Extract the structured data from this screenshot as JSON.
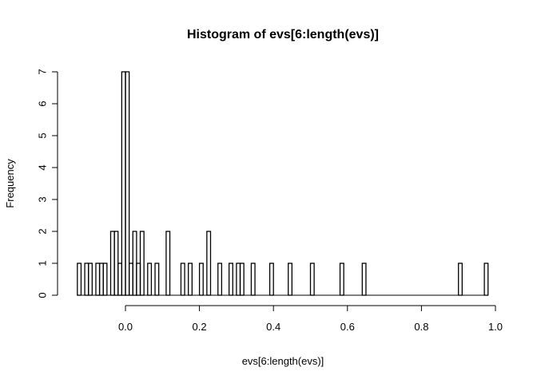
{
  "chart_data": {
    "type": "bar",
    "title": "Histogram of evs[6:length(evs)]",
    "xlabel": "evs[6:length(evs)]",
    "ylabel": "Frequency",
    "xlim": [
      -0.13,
      0.98
    ],
    "ylim": [
      0,
      7
    ],
    "x_ticks": [
      "0.0",
      "0.2",
      "0.4",
      "0.6",
      "0.8",
      "1.0"
    ],
    "y_ticks": [
      "0",
      "1",
      "2",
      "3",
      "4",
      "5",
      "6",
      "7"
    ],
    "bin_width": 0.01,
    "bins": [
      {
        "x": -0.13,
        "count": 1
      },
      {
        "x": -0.12,
        "count": 0
      },
      {
        "x": -0.11,
        "count": 1
      },
      {
        "x": -0.1,
        "count": 1
      },
      {
        "x": -0.09,
        "count": 0
      },
      {
        "x": -0.08,
        "count": 1
      },
      {
        "x": -0.07,
        "count": 1
      },
      {
        "x": -0.06,
        "count": 1
      },
      {
        "x": -0.05,
        "count": 0
      },
      {
        "x": -0.04,
        "count": 2
      },
      {
        "x": -0.03,
        "count": 2
      },
      {
        "x": -0.02,
        "count": 1
      },
      {
        "x": -0.01,
        "count": 7
      },
      {
        "x": 0.0,
        "count": 7
      },
      {
        "x": 0.01,
        "count": 1
      },
      {
        "x": 0.02,
        "count": 2
      },
      {
        "x": 0.03,
        "count": 1
      },
      {
        "x": 0.04,
        "count": 2
      },
      {
        "x": 0.05,
        "count": 0
      },
      {
        "x": 0.06,
        "count": 1
      },
      {
        "x": 0.07,
        "count": 0
      },
      {
        "x": 0.08,
        "count": 1
      },
      {
        "x": 0.11,
        "count": 2
      },
      {
        "x": 0.15,
        "count": 1
      },
      {
        "x": 0.17,
        "count": 1
      },
      {
        "x": 0.2,
        "count": 1
      },
      {
        "x": 0.22,
        "count": 2
      },
      {
        "x": 0.25,
        "count": 1
      },
      {
        "x": 0.28,
        "count": 1
      },
      {
        "x": 0.3,
        "count": 1
      },
      {
        "x": 0.31,
        "count": 1
      },
      {
        "x": 0.34,
        "count": 1
      },
      {
        "x": 0.39,
        "count": 1
      },
      {
        "x": 0.44,
        "count": 1
      },
      {
        "x": 0.5,
        "count": 1
      },
      {
        "x": 0.58,
        "count": 1
      },
      {
        "x": 0.64,
        "count": 1
      },
      {
        "x": 0.9,
        "count": 1
      },
      {
        "x": 0.97,
        "count": 1
      }
    ]
  }
}
